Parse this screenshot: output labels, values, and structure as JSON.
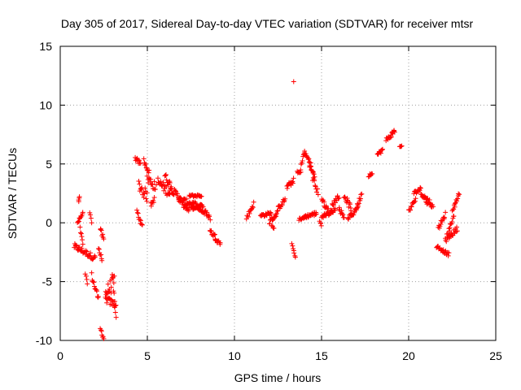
{
  "chart_data": {
    "type": "scatter",
    "title": "Day 305 of 2017, Sidereal Day-to-day VTEC variation (SDTVAR) for receiver mtsr",
    "xlabel": "GPS time / hours",
    "ylabel": "SDTVAR / TECUs",
    "xlim": [
      0,
      25
    ],
    "ylim": [
      -10,
      15
    ],
    "xticks": [
      0,
      5,
      10,
      15,
      20,
      25
    ],
    "yticks": [
      -10,
      -5,
      0,
      5,
      10,
      15
    ],
    "grid": true,
    "marker": "+",
    "color": "#ff0000",
    "segments": [
      [
        0.8,
        2.0,
        -2.0,
        -3.0,
        0.25
      ],
      [
        1.0,
        1.3,
        0.0,
        0.8,
        0.15
      ],
      [
        1.05,
        1.1,
        1.8,
        2.2,
        0.05
      ],
      [
        1.15,
        1.3,
        -0.5,
        -1.8,
        0.15
      ],
      [
        1.45,
        1.55,
        -4.3,
        -5.3,
        0.15
      ],
      [
        1.7,
        1.8,
        1.0,
        0.0,
        0.15
      ],
      [
        1.8,
        2.2,
        -4.5,
        -6.5,
        0.3
      ],
      [
        2.2,
        2.4,
        -2.0,
        -3.2,
        0.2
      ],
      [
        2.3,
        2.5,
        -0.5,
        -1.5,
        0.2
      ],
      [
        2.3,
        2.5,
        -9.0,
        -9.8,
        0.2
      ],
      [
        2.6,
        3.1,
        -6.0,
        -5.0,
        0.6
      ],
      [
        2.6,
        3.2,
        -6.5,
        -7.0,
        0.3
      ],
      [
        3.0,
        3.2,
        -4.3,
        -8.0,
        0.3
      ],
      [
        4.3,
        4.6,
        5.5,
        5.0,
        0.2
      ],
      [
        4.4,
        4.7,
        1.0,
        -0.3,
        0.2
      ],
      [
        4.5,
        5.0,
        3.2,
        2.2,
        0.5
      ],
      [
        4.8,
        5.1,
        5.3,
        4.3,
        0.2
      ],
      [
        5.0,
        5.5,
        3.8,
        3.0,
        0.4
      ],
      [
        5.2,
        5.4,
        1.5,
        2.0,
        0.2
      ],
      [
        5.6,
        6.3,
        3.5,
        2.5,
        0.4
      ],
      [
        6.0,
        6.4,
        4.0,
        3.0,
        0.3
      ],
      [
        6.3,
        6.9,
        3.0,
        2.0,
        0.3
      ],
      [
        6.8,
        7.8,
        2.0,
        1.5,
        0.25
      ],
      [
        7.0,
        7.4,
        1.6,
        1.0,
        0.2
      ],
      [
        7.4,
        8.1,
        2.3,
        2.3,
        0.1
      ],
      [
        7.5,
        8.2,
        1.2,
        1.5,
        0.15
      ],
      [
        7.8,
        8.3,
        1.4,
        0.8,
        0.15
      ],
      [
        8.3,
        8.6,
        1.0,
        0.4,
        0.2
      ],
      [
        8.6,
        8.9,
        -0.7,
        -1.2,
        0.2
      ],
      [
        8.9,
        9.2,
        -1.3,
        -1.8,
        0.2
      ],
      [
        10.7,
        11.1,
        0.4,
        1.6,
        0.2
      ],
      [
        11.5,
        12.1,
        0.6,
        0.8,
        0.15
      ],
      [
        12.0,
        12.5,
        0.0,
        0.9,
        0.2
      ],
      [
        12.15,
        12.25,
        -0.2,
        -0.5,
        0.05
      ],
      [
        12.5,
        12.9,
        1.2,
        2.0,
        0.2
      ],
      [
        13.0,
        13.4,
        3.0,
        3.6,
        0.2
      ],
      [
        13.3,
        13.5,
        -1.8,
        -3.0,
        0.1
      ],
      [
        13.6,
        13.8,
        4.4,
        4.2,
        0.15
      ],
      [
        13.8,
        14.0,
        4.6,
        6.0,
        0.2
      ],
      [
        14.0,
        14.4,
        6.0,
        5.0,
        0.2
      ],
      [
        14.3,
        14.6,
        4.8,
        4.0,
        0.2
      ],
      [
        14.5,
        14.8,
        3.8,
        2.5,
        0.25
      ],
      [
        13.7,
        14.1,
        0.3,
        0.5,
        0.1
      ],
      [
        14.0,
        14.7,
        0.5,
        0.8,
        0.15
      ],
      [
        14.9,
        15.0,
        0.2,
        -0.2,
        0.15
      ],
      [
        15.0,
        15.4,
        2.0,
        1.0,
        0.2
      ],
      [
        15.0,
        15.6,
        0.5,
        1.0,
        0.15
      ],
      [
        15.4,
        15.8,
        0.7,
        1.2,
        0.15
      ],
      [
        15.6,
        16.0,
        1.5,
        2.3,
        0.2
      ],
      [
        16.0,
        16.3,
        1.2,
        0.5,
        0.2
      ],
      [
        16.3,
        16.7,
        2.3,
        1.2,
        0.25
      ],
      [
        16.5,
        16.7,
        0.3,
        0.8,
        0.1
      ],
      [
        16.7,
        17.1,
        0.5,
        1.5,
        0.2
      ],
      [
        17.0,
        17.3,
        1.2,
        2.5,
        0.2
      ],
      [
        17.7,
        17.9,
        4.0,
        4.3,
        0.15
      ],
      [
        18.2,
        18.5,
        5.8,
        6.2,
        0.15
      ],
      [
        18.7,
        19.2,
        7.0,
        7.8,
        0.2
      ],
      [
        19.5,
        19.6,
        6.5,
        6.5,
        0.05
      ],
      [
        20.0,
        20.4,
        1.0,
        2.0,
        0.2
      ],
      [
        20.3,
        20.7,
        2.5,
        2.9,
        0.15
      ],
      [
        20.7,
        21.2,
        2.5,
        1.8,
        0.2
      ],
      [
        21.0,
        21.4,
        1.8,
        1.4,
        0.15
      ],
      [
        21.6,
        22.3,
        -2.0,
        -2.7,
        0.15
      ],
      [
        21.7,
        22.1,
        -0.5,
        0.7,
        0.2
      ],
      [
        22.1,
        22.8,
        -1.5,
        -0.5,
        0.2
      ],
      [
        22.2,
        22.6,
        -1.0,
        0.5,
        0.2
      ],
      [
        22.5,
        22.9,
        1.0,
        2.5,
        0.2
      ]
    ],
    "outliers": [
      [
        13.4,
        12.0
      ]
    ]
  }
}
